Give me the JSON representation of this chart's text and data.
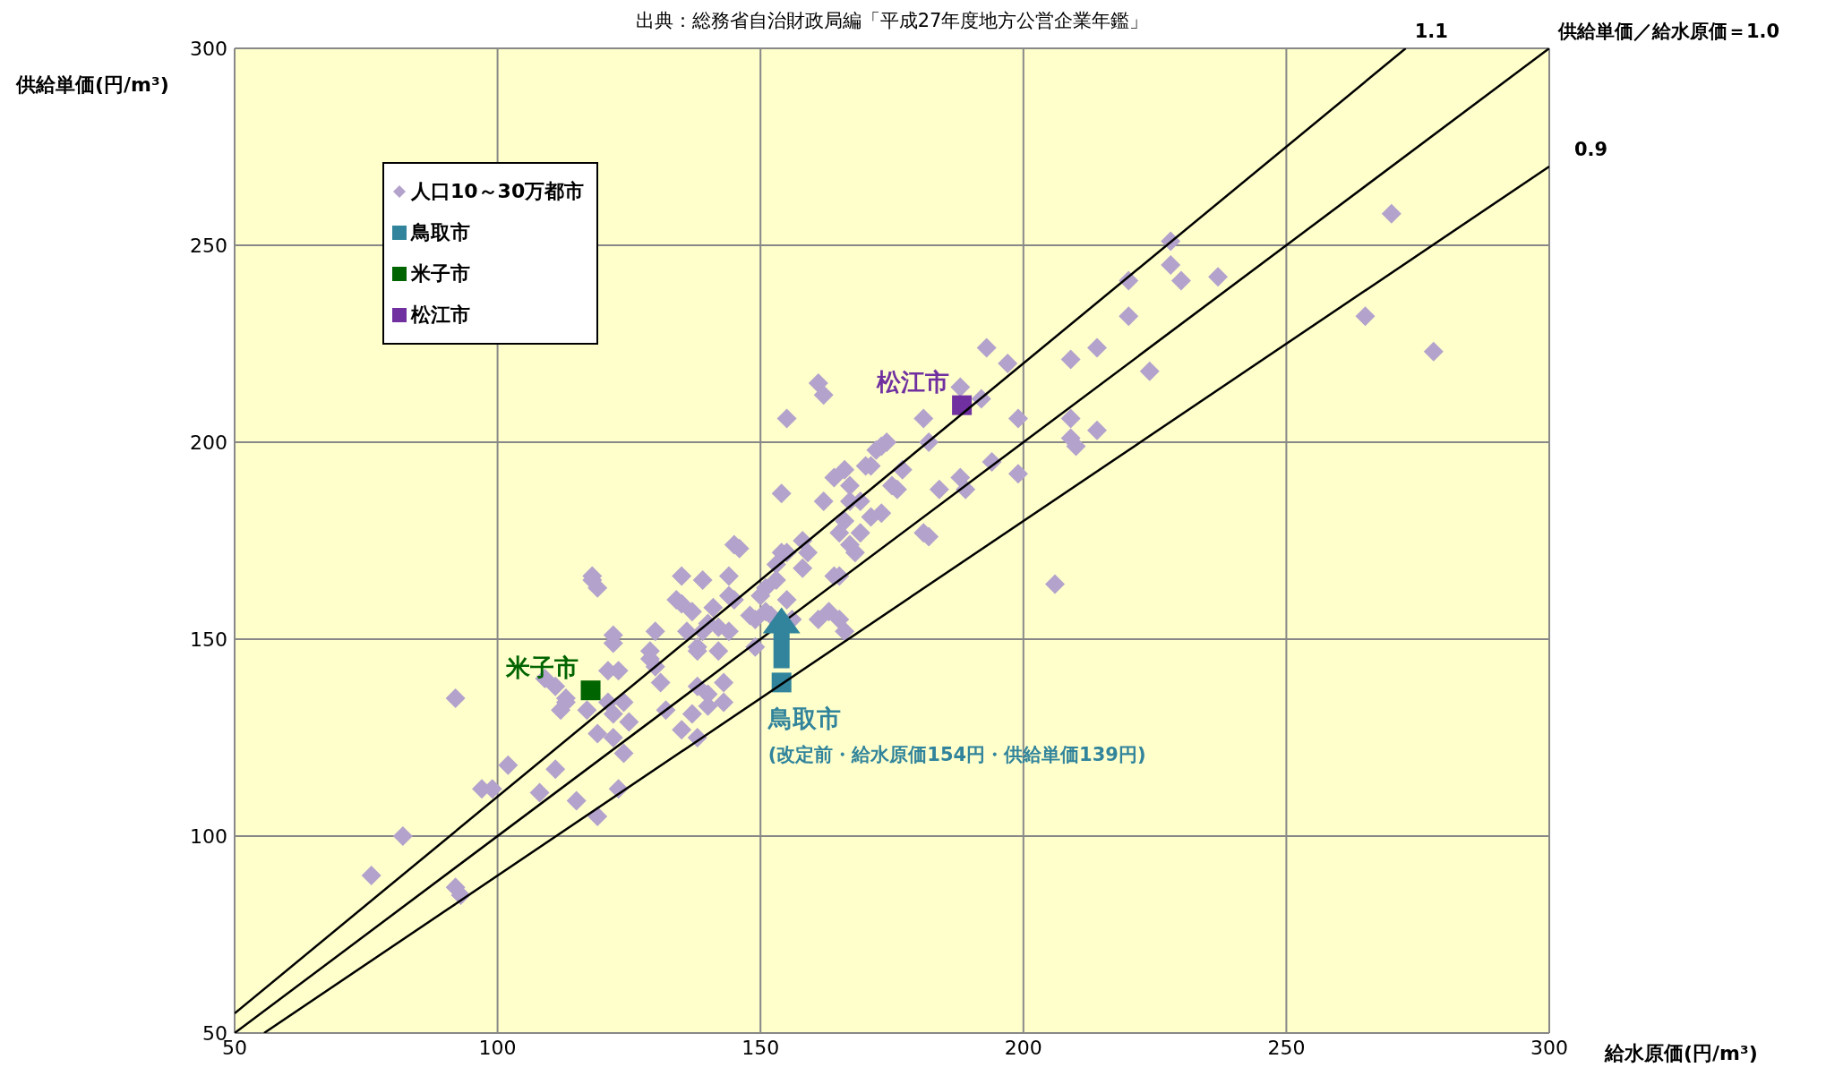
{
  "chart_data": {
    "type": "scatter",
    "xlabel": "給水原価(円/m³)",
    "ylabel": "供給単価(円/m³)",
    "xlim": [
      50,
      300
    ],
    "ylim": [
      50,
      300
    ],
    "xticks": [
      50,
      100,
      150,
      200,
      250,
      300
    ],
    "yticks": [
      50,
      100,
      150,
      200,
      250,
      300
    ],
    "grid": true,
    "legend": "top left",
    "annotations": [
      "出典：総務省自治財政局編「平成27年度地方公営企業年鑑」",
      {
        "text": "鳥取市",
        "x": 154,
        "y": 139
      },
      "(改定前・給水原価154円・供給単価139円)",
      {
        "text": "米子市",
        "x": 117.7,
        "y": 137
      },
      {
        "text": "松江市",
        "x": 188.3,
        "y": 209.4
      }
    ],
    "series": [
      {
        "name": "人口10～30万都市",
        "color": "#b3a2cc",
        "marker": "diamond",
        "x": [
          76,
          82,
          92,
          92,
          93,
          97,
          99,
          102,
          108,
          109,
          111,
          111,
          113,
          113,
          112,
          115,
          117,
          118,
          118,
          119,
          119,
          119,
          121,
          122,
          122,
          122,
          121,
          123,
          124,
          122,
          123,
          124,
          125,
          129,
          129,
          130,
          130,
          131,
          132,
          134,
          135,
          137,
          135,
          135,
          136,
          138,
          138,
          137,
          138,
          138,
          139,
          139,
          140,
          140,
          140,
          141,
          142,
          142,
          143,
          143,
          144,
          144,
          144,
          145,
          145,
          146,
          148,
          149,
          149,
          150,
          151,
          151,
          152,
          153,
          153,
          154,
          154,
          155,
          155,
          155,
          156,
          158,
          158,
          159,
          161,
          161,
          162,
          162,
          163,
          164,
          164,
          165,
          165,
          165,
          166,
          166,
          166,
          167,
          167,
          167,
          168,
          169,
          169,
          170,
          171,
          171,
          172,
          173,
          173,
          174,
          175,
          176,
          177,
          181,
          182,
          181,
          182,
          184,
          188,
          188,
          189,
          192,
          193,
          194,
          197,
          199,
          199,
          206,
          209,
          209,
          209,
          210,
          214,
          214,
          220,
          220,
          224,
          228,
          228,
          230,
          237,
          265,
          270,
          278
        ],
        "values": [
          90,
          100,
          135,
          87,
          85,
          112,
          112,
          118,
          111,
          140,
          117,
          138,
          135,
          134,
          132,
          109,
          132,
          166,
          165,
          163,
          126,
          105,
          142,
          151,
          149,
          131,
          134,
          142,
          134,
          125,
          112,
          121,
          129,
          147,
          145,
          143,
          152,
          139,
          132,
          160,
          159,
          157,
          127,
          166,
          152,
          138,
          125,
          131,
          148,
          147,
          152,
          165,
          133,
          136,
          154,
          158,
          147,
          153,
          139,
          134,
          161,
          152,
          166,
          160,
          174,
          173,
          156,
          155,
          148,
          161,
          157,
          163,
          156,
          165,
          169,
          172,
          187,
          172,
          160,
          206,
          155,
          168,
          175,
          172,
          155,
          215,
          212,
          185,
          157,
          166,
          191,
          177,
          166,
          155,
          152,
          193,
          180,
          189,
          185,
          174,
          172,
          177,
          185,
          194,
          194,
          181,
          198,
          199,
          182,
          200,
          189,
          188,
          193,
          206,
          200,
          177,
          176,
          188,
          214,
          191,
          188,
          211,
          224,
          195,
          220,
          206,
          192,
          164,
          206,
          221,
          201,
          199,
          203,
          224,
          241,
          232,
          218,
          251,
          245,
          241,
          242,
          232,
          258,
          223
        ]
      },
      {
        "name": "鳥取市",
        "color": "#31849b",
        "marker": "square",
        "x": [
          154
        ],
        "values": [
          139
        ]
      },
      {
        "name": "米子市",
        "color": "#006400",
        "marker": "square",
        "x": [
          117.7
        ],
        "values": [
          137
        ]
      },
      {
        "name": "松江市",
        "color": "#7030a0",
        "marker": "square",
        "x": [
          188.3
        ],
        "values": [
          209.4
        ]
      },
      {
        "type": "line",
        "name": "1.1",
        "color": "#000000",
        "x": [
          50,
          272.7
        ],
        "values": [
          55,
          300
        ]
      },
      {
        "type": "line",
        "name": "供給単価／給水原価＝1.0",
        "color": "#000000",
        "x": [
          50,
          300
        ],
        "values": [
          50,
          300
        ]
      },
      {
        "type": "line",
        "name": "0.9",
        "color": "#000000",
        "x": [
          55.6,
          300
        ],
        "values": [
          50,
          270
        ]
      }
    ]
  }
}
